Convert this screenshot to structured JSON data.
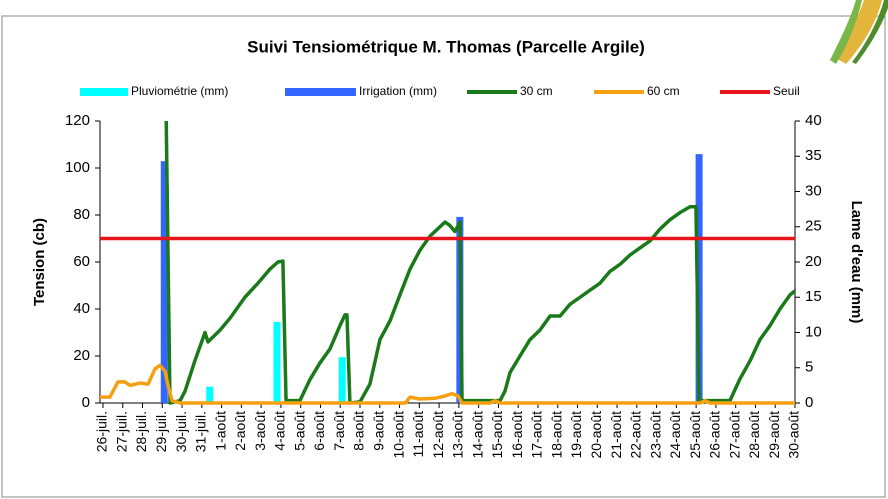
{
  "chart_data": {
    "type": "combo",
    "title": "Suivi Tensiométrique M. Thomas (Parcelle Argile)",
    "y_label": "Tension (cb)",
    "y2_label": "Lame d'eau (mm)",
    "legend_position": "top",
    "grid": false,
    "xlim": [
      -0.15,
      35
    ],
    "xticks": [
      {
        "value": 0,
        "label": "26-juil."
      },
      {
        "value": 1,
        "label": "27-juil."
      },
      {
        "value": 2,
        "label": "28-juil."
      },
      {
        "value": 3,
        "label": "29-juil."
      },
      {
        "value": 4,
        "label": "30-juil."
      },
      {
        "value": 5,
        "label": "31-juil."
      },
      {
        "value": 6,
        "label": "1-août"
      },
      {
        "value": 7,
        "label": "2-août"
      },
      {
        "value": 8,
        "label": "3-août"
      },
      {
        "value": 9,
        "label": "4-août"
      },
      {
        "value": 10,
        "label": "5-août"
      },
      {
        "value": 11,
        "label": "6-août"
      },
      {
        "value": 12,
        "label": "7-août"
      },
      {
        "value": 13,
        "label": "8-août"
      },
      {
        "value": 14,
        "label": "9-août"
      },
      {
        "value": 15,
        "label": "10-août"
      },
      {
        "value": 16,
        "label": "11-août"
      },
      {
        "value": 17,
        "label": "12-août"
      },
      {
        "value": 18,
        "label": "13-août"
      },
      {
        "value": 19,
        "label": "14-août"
      },
      {
        "value": 20,
        "label": "15-août"
      },
      {
        "value": 21,
        "label": "16-août"
      },
      {
        "value": 22,
        "label": "17-août"
      },
      {
        "value": 23,
        "label": "18-août"
      },
      {
        "value": 24,
        "label": "19-août"
      },
      {
        "value": 25,
        "label": "20-août"
      },
      {
        "value": 26,
        "label": "21-août"
      },
      {
        "value": 27,
        "label": "22-août"
      },
      {
        "value": 28,
        "label": "23-août"
      },
      {
        "value": 29,
        "label": "24-août"
      },
      {
        "value": 30,
        "label": "25-août"
      },
      {
        "value": 31,
        "label": "26-août"
      },
      {
        "value": 32,
        "label": "27-août"
      },
      {
        "value": 33,
        "label": "28-août"
      },
      {
        "value": 34,
        "label": "29-août"
      },
      {
        "value": 35,
        "label": "30-août"
      }
    ],
    "ylim": [
      0,
      120
    ],
    "yticks": [
      0,
      20,
      40,
      60,
      80,
      100,
      120
    ],
    "y2lim": [
      0,
      40
    ],
    "y2ticks": [
      0,
      5,
      10,
      15,
      20,
      25,
      30,
      35,
      40
    ],
    "series": [
      {
        "name": "Pluviométrie (mm)",
        "type": "bar",
        "axis": "y2",
        "color": "#00ffff",
        "x": [
          5.4,
          8.8,
          12.1
        ],
        "values": [
          2.3,
          11.5,
          6.5
        ]
      },
      {
        "name": "Irrigation (mm)",
        "type": "bar",
        "axis": "y2",
        "color": "#3366ff",
        "x": [
          3.1,
          18.05,
          30.15
        ],
        "values": [
          34.3,
          26.4,
          35.3
        ]
      },
      {
        "name": "30 cm",
        "type": "line",
        "color": "#1a7a1a",
        "x": [
          3.2,
          3.39,
          3.9,
          4.15,
          4.65,
          5.16,
          5.31,
          5.92,
          6.42,
          7.18,
          7.84,
          8.45,
          8.85,
          9.1,
          9.26,
          9.96,
          10.47,
          10.97,
          11.48,
          11.99,
          12.24,
          12.34,
          12.49,
          13.0,
          13.5,
          14.01,
          14.52,
          15.02,
          15.53,
          16.03,
          16.54,
          17.3,
          17.55,
          17.8,
          18.06,
          18.16,
          20.08,
          20.33,
          20.59,
          21.09,
          21.6,
          22.1,
          22.61,
          23.12,
          23.62,
          24.13,
          24.63,
          25.14,
          25.64,
          26.15,
          26.66,
          27.16,
          27.67,
          28.17,
          28.68,
          29.18,
          29.69,
          29.99,
          30.15,
          31.71,
          32.2,
          32.73,
          33.23,
          33.74,
          34.24,
          34.75,
          35.0
        ],
        "values": [
          120,
          0,
          1,
          5,
          18,
          30,
          26,
          31,
          36,
          45,
          51,
          57,
          60,
          60.4,
          1,
          1,
          10,
          17,
          23,
          33,
          37.5,
          37.5,
          0,
          0.5,
          8,
          27,
          35,
          46,
          57,
          65,
          71,
          77,
          75.5,
          73,
          77,
          1,
          1,
          5,
          13,
          20,
          27,
          31,
          37,
          37,
          42,
          45,
          48,
          51,
          56,
          59,
          63,
          66,
          69,
          74,
          78,
          81,
          83.5,
          83.5,
          1,
          1,
          10,
          18,
          27,
          33,
          40,
          46,
          47.7
        ]
      },
      {
        "name": "60 cm",
        "type": "line",
        "color": "#f5a011",
        "x": [
          -0.15,
          0.35,
          0.76,
          1.1,
          1.37,
          1.88,
          2.28,
          2.63,
          2.88,
          3.14,
          3.29,
          3.49,
          3.9,
          15.3,
          15.53,
          16.03,
          16.79,
          17.3,
          17.65,
          17.96,
          18.16,
          19.58,
          19.83,
          20.08,
          30.2,
          30.45,
          30.7,
          35.0
        ],
        "values": [
          2.5,
          2.5,
          9,
          9,
          7.5,
          8.5,
          8,
          14.5,
          16,
          13.5,
          7.5,
          1,
          0,
          0,
          2.5,
          1.7,
          2,
          3,
          4,
          3,
          0,
          0,
          1,
          0,
          0,
          1,
          0,
          0
        ]
      },
      {
        "name": "Seuil",
        "type": "line",
        "color": "#e8141b",
        "x": [
          -0.15,
          35.0
        ],
        "values": [
          70,
          70
        ]
      }
    ]
  }
}
